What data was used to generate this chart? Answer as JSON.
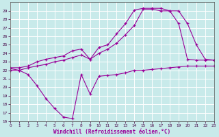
{
  "xlabel": "Windchill (Refroidissement éolien,°C)",
  "bg_color": "#c8eaea",
  "line_color": "#990099",
  "grid_color": "#ffffff",
  "ylim": [
    16,
    30
  ],
  "xlim": [
    0,
    23
  ],
  "yticks": [
    16,
    17,
    18,
    19,
    20,
    21,
    22,
    23,
    24,
    25,
    26,
    27,
    28,
    29
  ],
  "xticks": [
    0,
    1,
    2,
    3,
    4,
    5,
    6,
    7,
    8,
    9,
    10,
    11,
    12,
    13,
    14,
    15,
    16,
    17,
    18,
    19,
    20,
    21,
    22,
    23
  ],
  "line1_x": [
    0,
    1,
    2,
    3,
    4,
    5,
    6,
    7,
    8,
    9,
    10,
    11,
    12,
    13,
    14,
    15,
    16,
    17,
    18,
    19,
    20,
    21,
    22,
    23
  ],
  "line1_y": [
    22.0,
    22.0,
    21.5,
    20.2,
    18.7,
    17.5,
    16.5,
    16.3,
    21.5,
    19.2,
    21.3,
    21.4,
    21.5,
    21.7,
    22.0,
    22.0,
    22.1,
    22.2,
    22.3,
    22.4,
    22.5,
    22.5,
    22.5,
    22.5
  ],
  "line2_x": [
    0,
    1,
    2,
    3,
    4,
    5,
    6,
    7,
    8,
    9,
    10,
    11,
    12,
    13,
    14,
    15,
    16,
    17,
    18,
    19,
    20,
    21,
    22,
    23
  ],
  "line2_y": [
    22.2,
    22.0,
    22.3,
    22.5,
    22.7,
    23.0,
    23.2,
    23.5,
    23.8,
    23.3,
    24.0,
    24.5,
    25.2,
    26.2,
    27.3,
    29.2,
    29.2,
    29.0,
    29.0,
    27.5,
    23.3,
    23.2,
    23.2,
    23.2
  ],
  "line3_x": [
    0,
    1,
    2,
    3,
    4,
    5,
    6,
    7,
    8,
    9,
    10,
    11,
    12,
    13,
    14,
    15,
    16,
    17,
    18,
    19,
    20,
    21,
    22,
    23
  ],
  "line3_y": [
    22.3,
    22.3,
    22.5,
    23.0,
    23.3,
    23.5,
    23.7,
    24.3,
    24.5,
    23.3,
    24.7,
    25.0,
    26.3,
    27.5,
    29.1,
    29.3,
    29.3,
    29.3,
    29.0,
    29.0,
    27.5,
    25.0,
    23.3,
    23.2
  ]
}
